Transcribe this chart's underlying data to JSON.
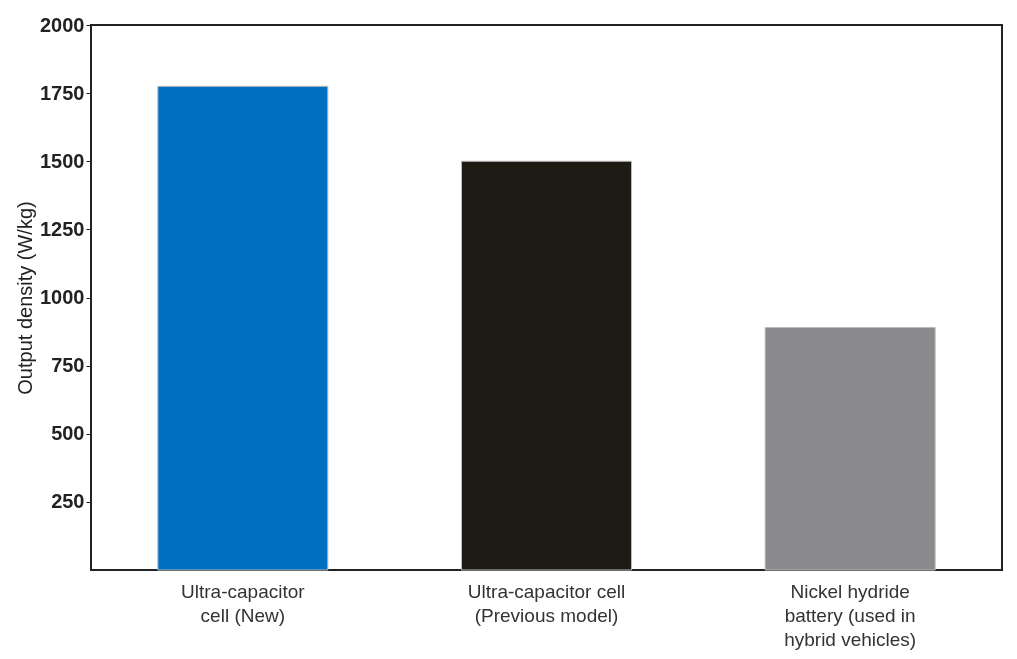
{
  "chart_data": {
    "type": "bar",
    "ylabel": "Output density (W/kg)",
    "categories": [
      "Ultra-capacitor\ncell (New)",
      "Ultra-capacitor cell\n(Previous model)",
      "Nickel hydride\nbattery (used in\nhybrid vehicles)"
    ],
    "values": [
      1775,
      1500,
      890
    ],
    "colors": [
      "#0070c0",
      "#1e1a14",
      "#8a8a8c"
    ],
    "ylim": [
      0,
      2000
    ],
    "yticks": [
      250,
      500,
      750,
      1000,
      1250,
      1500,
      1750,
      2000
    ],
    "grid": false
  }
}
